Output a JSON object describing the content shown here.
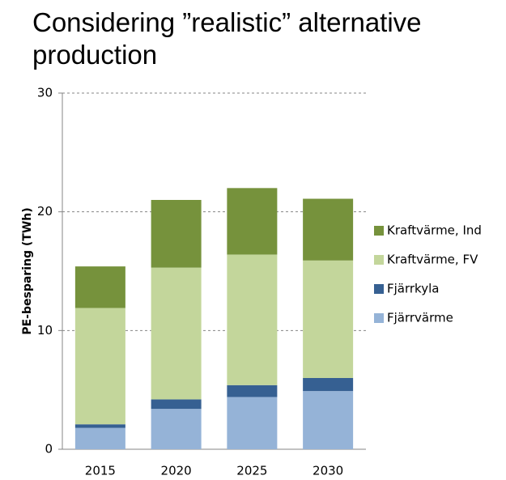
{
  "chart_data": {
    "type": "stacked-bar",
    "title": "Considering ”realistic” alternative production",
    "ylabel": "PE-besparing (TWh)",
    "categories": [
      "2015",
      "2020",
      "2025",
      "2030"
    ],
    "series": [
      {
        "name": "Fjärrvärme",
        "color": "#95b3d7",
        "values": [
          1.8,
          3.4,
          4.4,
          4.9
        ]
      },
      {
        "name": "Fjärrkyla",
        "color": "#366092",
        "values": [
          0.3,
          0.8,
          1.0,
          1.1
        ]
      },
      {
        "name": "Kraftvärme, FV",
        "color": "#c3d69b",
        "values": [
          9.8,
          11.1,
          11.0,
          9.9
        ]
      },
      {
        "name": "Kraftvärme, Ind",
        "color": "#76923c",
        "values": [
          3.5,
          5.7,
          5.6,
          5.2
        ]
      }
    ],
    "ylim": [
      0,
      30
    ],
    "yticks": [
      0,
      10,
      20,
      30
    ],
    "grid": true,
    "legend": "right"
  }
}
